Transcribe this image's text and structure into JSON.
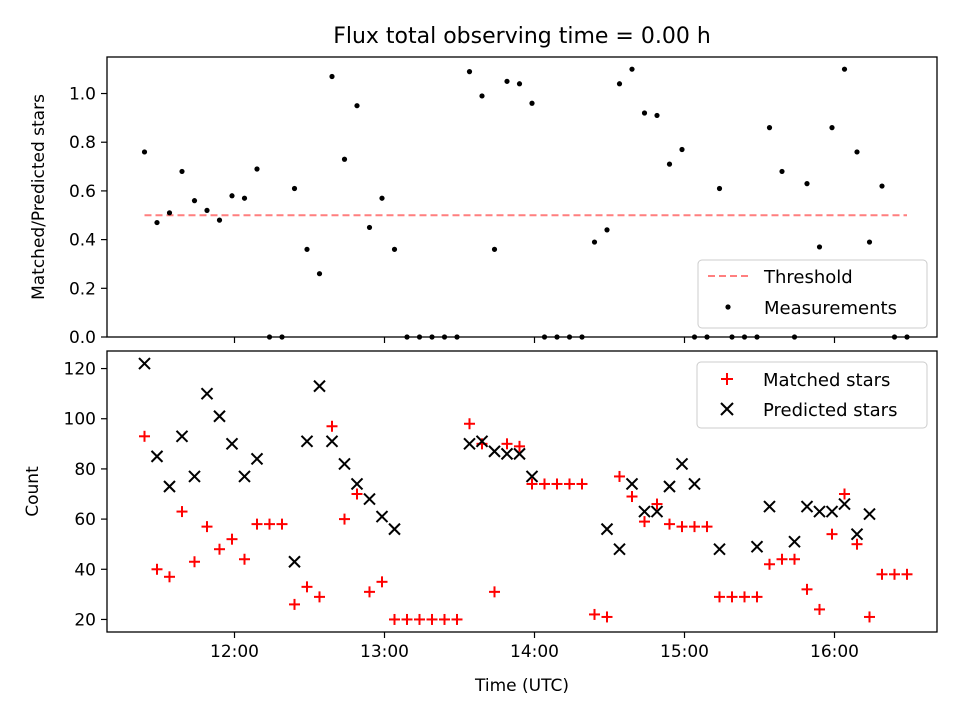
{
  "figure": {
    "title": "Flux total observing time = 0.00 h"
  },
  "colors": {
    "threshold": "#ff7f7f",
    "measurements": "#000000",
    "matched": "#ff0000",
    "predicted": "#000000",
    "frame": "#000000"
  },
  "chart_data": [
    {
      "type": "scatter",
      "panel": "top",
      "title": "Flux total observing time = 0.00 h",
      "xlabel": "",
      "ylabel": "Matched/Predicted stars",
      "xlim": [
        "11:09",
        "16:41"
      ],
      "ylim": [
        0,
        1.15
      ],
      "yticks": [
        0.0,
        0.2,
        0.4,
        0.6,
        0.8,
        1.0
      ],
      "ytick_labels": [
        "0.0",
        "0.2",
        "0.4",
        "0.6",
        "0.8",
        "1.0"
      ],
      "xticks": [
        "12:00",
        "13:00",
        "14:00",
        "15:00",
        "16:00"
      ],
      "grid": false,
      "legend": "lower right",
      "series": [
        {
          "name": "Threshold",
          "kind": "line",
          "style": "dashed",
          "x": [
            "11:24",
            "16:29"
          ],
          "values": [
            0.5,
            0.5
          ]
        },
        {
          "name": "Measurements",
          "kind": "dot",
          "x": [
            "11:24",
            "11:29",
            "11:34",
            "11:39",
            "11:44",
            "11:49",
            "11:54",
            "11:59",
            "12:04",
            "12:09",
            "12:14",
            "12:19",
            "12:24",
            "12:29",
            "12:34",
            "12:39",
            "12:44",
            "12:49",
            "12:54",
            "12:59",
            "13:04",
            "13:09",
            "13:14",
            "13:19",
            "13:24",
            "13:29",
            "13:34",
            "13:39",
            "13:44",
            "13:49",
            "13:54",
            "13:59",
            "14:04",
            "14:09",
            "14:14",
            "14:19",
            "14:24",
            "14:29",
            "14:34",
            "14:39",
            "14:44",
            "14:49",
            "14:54",
            "14:59",
            "15:04",
            "15:09",
            "15:14",
            "15:19",
            "15:24",
            "15:29",
            "15:34",
            "15:39",
            "15:44",
            "15:49",
            "15:54",
            "15:59",
            "16:04",
            "16:09",
            "16:14",
            "16:19",
            "16:24",
            "16:29"
          ],
          "values": [
            0.76,
            0.47,
            0.51,
            0.68,
            0.56,
            0.52,
            0.48,
            0.58,
            0.57,
            0.69,
            0.0,
            0.0,
            0.61,
            0.36,
            0.26,
            1.07,
            0.73,
            0.95,
            0.45,
            0.57,
            0.36,
            0.0,
            0.0,
            0.0,
            0.0,
            0.0,
            1.09,
            0.99,
            0.36,
            1.05,
            1.04,
            0.96,
            0.0,
            0.0,
            0.0,
            0.0,
            0.39,
            0.44,
            1.04,
            1.1,
            0.92,
            0.91,
            0.71,
            0.77,
            0.0,
            0.0,
            0.61,
            0.0,
            0.0,
            0.0,
            0.86,
            0.68,
            0.0,
            0.63,
            0.37,
            0.86,
            1.1,
            0.76,
            0.39,
            0.62,
            0.0,
            0.0
          ]
        }
      ]
    },
    {
      "type": "scatter",
      "panel": "bottom",
      "xlabel": "Time (UTC)",
      "ylabel": "Count",
      "xlim": [
        "11:09",
        "16:41"
      ],
      "ylim": [
        15,
        127
      ],
      "yticks": [
        20,
        40,
        60,
        80,
        100,
        120
      ],
      "ytick_labels": [
        "20",
        "40",
        "60",
        "80",
        "100",
        "120"
      ],
      "xticks": [
        "12:00",
        "13:00",
        "14:00",
        "15:00",
        "16:00"
      ],
      "xtick_labels": [
        "12:00",
        "13:00",
        "14:00",
        "15:00",
        "16:00"
      ],
      "grid": false,
      "legend": "upper right",
      "series": [
        {
          "name": "Matched stars",
          "kind": "plus",
          "x": [
            "11:24",
            "11:29",
            "11:34",
            "11:39",
            "11:44",
            "11:49",
            "11:54",
            "11:59",
            "12:04",
            "12:09",
            "12:14",
            "12:19",
            "12:24",
            "12:29",
            "12:34",
            "12:39",
            "12:44",
            "12:49",
            "12:54",
            "12:59",
            "13:04",
            "13:09",
            "13:14",
            "13:19",
            "13:24",
            "13:29",
            "13:34",
            "13:39",
            "13:44",
            "13:49",
            "13:54",
            "13:59",
            "14:04",
            "14:09",
            "14:14",
            "14:19",
            "14:24",
            "14:29",
            "14:34",
            "14:39",
            "14:44",
            "14:49",
            "14:54",
            "14:59",
            "15:04",
            "15:09",
            "15:14",
            "15:19",
            "15:24",
            "15:29",
            "15:34",
            "15:39",
            "15:44",
            "15:49",
            "15:54",
            "15:59",
            "16:04",
            "16:09",
            "16:14",
            "16:19",
            "16:24",
            "16:29"
          ],
          "values": [
            93,
            40,
            37,
            63,
            43,
            57,
            48,
            52,
            44,
            58,
            58,
            58,
            26,
            33,
            29,
            97,
            60,
            70,
            31,
            35,
            20,
            20,
            20,
            20,
            20,
            20,
            98,
            90,
            31,
            90,
            89,
            74,
            74,
            74,
            74,
            74,
            22,
            21,
            77,
            69,
            59,
            66,
            58,
            57,
            57,
            57,
            29,
            29,
            29,
            29,
            42,
            44,
            44,
            32,
            24,
            54,
            70,
            50,
            21,
            38,
            38,
            38
          ]
        },
        {
          "name": "Predicted stars",
          "kind": "cross",
          "x": [
            "11:24",
            "11:29",
            "11:34",
            "11:39",
            "11:44",
            "11:49",
            "11:54",
            "11:59",
            "12:04",
            "12:09",
            "12:24",
            "12:29",
            "12:34",
            "12:39",
            "12:44",
            "12:49",
            "12:54",
            "12:59",
            "13:04",
            "13:34",
            "13:39",
            "13:44",
            "13:49",
            "13:54",
            "13:59",
            "14:29",
            "14:34",
            "14:39",
            "14:44",
            "14:49",
            "14:54",
            "14:59",
            "15:04",
            "15:14",
            "15:29",
            "15:34",
            "15:44",
            "15:49",
            "15:54",
            "15:59",
            "16:04",
            "16:09",
            "16:14"
          ],
          "values": [
            122,
            85,
            73,
            93,
            77,
            110,
            101,
            90,
            77,
            84,
            43,
            91,
            113,
            91,
            82,
            74,
            68,
            61,
            56,
            90,
            91,
            87,
            86,
            86,
            77,
            56,
            48,
            74,
            63,
            63,
            73,
            82,
            74,
            48,
            49,
            65,
            51,
            65,
            63,
            63,
            66,
            54,
            62
          ]
        }
      ]
    }
  ]
}
